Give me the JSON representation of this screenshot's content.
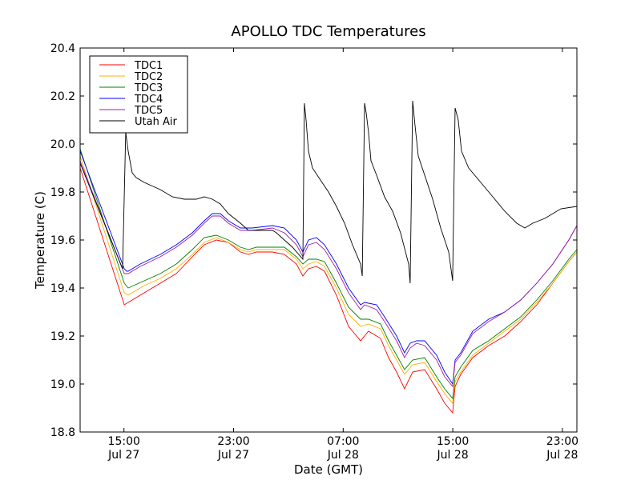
{
  "chart_data": {
    "type": "line",
    "title": "APOLLO TDC Temperatures",
    "xlabel": "Date (GMT)",
    "ylabel": "Temperature (C)",
    "x_units": "hours since Jul 27 00:00 GMT",
    "xlim": [
      11.8,
      48.06
    ],
    "ylim": [
      18.8,
      20.4
    ],
    "grid": false,
    "legend_position": "top-left",
    "yticks": [
      18.8,
      19.0,
      19.2,
      19.4,
      19.6,
      19.8,
      20.0,
      20.2,
      20.4
    ],
    "ytick_labels": [
      "18.8",
      "19.0",
      "19.2",
      "19.4",
      "19.6",
      "19.8",
      "20.0",
      "20.2",
      "20.4"
    ],
    "xticks": [
      {
        "value": 15,
        "time": "15:00",
        "date": "Jul 27"
      },
      {
        "value": 23,
        "time": "23:00",
        "date": "Jul 27"
      },
      {
        "value": 31,
        "time": "07:00",
        "date": "Jul 28"
      },
      {
        "value": 39,
        "time": "15:00",
        "date": "Jul 28"
      },
      {
        "value": 47,
        "time": "23:00",
        "date": "Jul 28"
      }
    ],
    "series": [
      {
        "name": "TDC1",
        "color": "#ff0000",
        "points": [
          [
            11.8,
            19.9
          ],
          [
            15.02,
            19.33
          ],
          [
            15.31,
            19.34
          ],
          [
            16.48,
            19.38
          ],
          [
            17.65,
            19.42
          ],
          [
            18.82,
            19.46
          ],
          [
            19.99,
            19.53
          ],
          [
            20.86,
            19.58
          ],
          [
            21.74,
            19.6
          ],
          [
            22.62,
            19.59
          ],
          [
            23.5,
            19.55
          ],
          [
            24.08,
            19.54
          ],
          [
            24.67,
            19.55
          ],
          [
            25.84,
            19.55
          ],
          [
            26.71,
            19.54
          ],
          [
            27.59,
            19.5
          ],
          [
            28.06,
            19.45
          ],
          [
            28.47,
            19.48
          ],
          [
            29.05,
            19.49
          ],
          [
            29.64,
            19.47
          ],
          [
            30.51,
            19.37
          ],
          [
            31.39,
            19.24
          ],
          [
            32.27,
            19.18
          ],
          [
            32.85,
            19.22
          ],
          [
            33.73,
            19.19
          ],
          [
            34.31,
            19.11
          ],
          [
            34.9,
            19.05
          ],
          [
            35.48,
            18.98
          ],
          [
            36.07,
            19.05
          ],
          [
            36.95,
            19.06
          ],
          [
            37.82,
            18.98
          ],
          [
            38.41,
            18.92
          ],
          [
            38.99,
            18.88
          ],
          [
            39.17,
            18.99
          ],
          [
            39.58,
            19.04
          ],
          [
            40.46,
            19.11
          ],
          [
            41.62,
            19.16
          ],
          [
            42.79,
            19.2
          ],
          [
            43.96,
            19.26
          ],
          [
            45.13,
            19.33
          ],
          [
            46.3,
            19.42
          ],
          [
            47.47,
            19.51
          ],
          [
            48.06,
            19.55
          ]
        ]
      },
      {
        "name": "TDC2",
        "color": "#ffb000",
        "points": [
          [
            11.8,
            19.95
          ],
          [
            15.02,
            19.38
          ],
          [
            15.31,
            19.37
          ],
          [
            16.48,
            19.41
          ],
          [
            17.65,
            19.44
          ],
          [
            18.82,
            19.48
          ],
          [
            19.99,
            19.54
          ],
          [
            20.86,
            19.59
          ],
          [
            21.74,
            19.61
          ],
          [
            22.62,
            19.59
          ],
          [
            23.5,
            19.56
          ],
          [
            24.08,
            19.55
          ],
          [
            24.67,
            19.56
          ],
          [
            25.84,
            19.56
          ],
          [
            26.71,
            19.56
          ],
          [
            27.59,
            19.52
          ],
          [
            28.06,
            19.48
          ],
          [
            28.47,
            19.5
          ],
          [
            29.05,
            19.51
          ],
          [
            29.64,
            19.49
          ],
          [
            30.51,
            19.4
          ],
          [
            31.39,
            19.29
          ],
          [
            32.27,
            19.24
          ],
          [
            32.85,
            19.25
          ],
          [
            33.73,
            19.23
          ],
          [
            34.31,
            19.16
          ],
          [
            34.9,
            19.1
          ],
          [
            35.48,
            19.04
          ],
          [
            36.07,
            19.08
          ],
          [
            36.95,
            19.09
          ],
          [
            37.82,
            19.01
          ],
          [
            38.41,
            18.96
          ],
          [
            38.99,
            18.92
          ],
          [
            39.17,
            19.01
          ],
          [
            39.58,
            19.05
          ],
          [
            40.46,
            19.12
          ],
          [
            41.62,
            19.17
          ],
          [
            42.79,
            19.22
          ],
          [
            43.96,
            19.27
          ],
          [
            45.13,
            19.34
          ],
          [
            46.3,
            19.42
          ],
          [
            47.47,
            19.51
          ],
          [
            48.06,
            19.55
          ]
        ]
      },
      {
        "name": "TDC3",
        "color": "#008000",
        "points": [
          [
            11.8,
            19.98
          ],
          [
            15.02,
            19.42
          ],
          [
            15.31,
            19.4
          ],
          [
            16.48,
            19.43
          ],
          [
            17.65,
            19.46
          ],
          [
            18.82,
            19.5
          ],
          [
            19.99,
            19.56
          ],
          [
            20.86,
            19.61
          ],
          [
            21.74,
            19.62
          ],
          [
            22.62,
            19.6
          ],
          [
            23.5,
            19.57
          ],
          [
            24.08,
            19.56
          ],
          [
            24.67,
            19.57
          ],
          [
            25.84,
            19.57
          ],
          [
            26.71,
            19.57
          ],
          [
            27.59,
            19.53
          ],
          [
            28.06,
            19.5
          ],
          [
            28.47,
            19.52
          ],
          [
            29.05,
            19.52
          ],
          [
            29.64,
            19.51
          ],
          [
            30.51,
            19.42
          ],
          [
            31.39,
            19.32
          ],
          [
            32.27,
            19.27
          ],
          [
            32.85,
            19.27
          ],
          [
            33.73,
            19.25
          ],
          [
            34.31,
            19.18
          ],
          [
            34.9,
            19.12
          ],
          [
            35.48,
            19.06
          ],
          [
            36.07,
            19.1
          ],
          [
            36.95,
            19.11
          ],
          [
            37.82,
            19.03
          ],
          [
            38.41,
            18.98
          ],
          [
            38.99,
            18.94
          ],
          [
            39.17,
            19.03
          ],
          [
            39.58,
            19.07
          ],
          [
            40.46,
            19.14
          ],
          [
            41.62,
            19.18
          ],
          [
            42.79,
            19.23
          ],
          [
            43.96,
            19.28
          ],
          [
            45.13,
            19.35
          ],
          [
            46.3,
            19.43
          ],
          [
            47.47,
            19.52
          ],
          [
            48.06,
            19.56
          ]
        ]
      },
      {
        "name": "TDC4",
        "color": "#0000ff",
        "points": [
          [
            11.8,
            19.97
          ],
          [
            15.02,
            19.48
          ],
          [
            15.19,
            19.47
          ],
          [
            15.31,
            19.47
          ],
          [
            16.19,
            19.5
          ],
          [
            17.65,
            19.54
          ],
          [
            18.82,
            19.58
          ],
          [
            19.99,
            19.63
          ],
          [
            20.86,
            19.68
          ],
          [
            21.45,
            19.71
          ],
          [
            22.03,
            19.71
          ],
          [
            22.62,
            19.68
          ],
          [
            23.5,
            19.65
          ],
          [
            24.37,
            19.65
          ],
          [
            25.84,
            19.66
          ],
          [
            26.71,
            19.65
          ],
          [
            27.59,
            19.6
          ],
          [
            28.06,
            19.55
          ],
          [
            28.47,
            19.6
          ],
          [
            29.05,
            19.61
          ],
          [
            29.64,
            19.58
          ],
          [
            30.51,
            19.5
          ],
          [
            31.39,
            19.4
          ],
          [
            32.27,
            19.33
          ],
          [
            32.56,
            19.34
          ],
          [
            33.44,
            19.33
          ],
          [
            34.02,
            19.28
          ],
          [
            34.9,
            19.2
          ],
          [
            35.48,
            19.13
          ],
          [
            35.89,
            19.17
          ],
          [
            36.36,
            19.18
          ],
          [
            36.95,
            19.18
          ],
          [
            37.82,
            19.12
          ],
          [
            38.41,
            19.05
          ],
          [
            38.99,
            19.0
          ],
          [
            39.17,
            19.1
          ],
          [
            39.58,
            19.13
          ],
          [
            40.46,
            19.22
          ],
          [
            41.62,
            19.27
          ],
          [
            42.79,
            19.3
          ],
          [
            43.96,
            19.35
          ],
          [
            45.13,
            19.42
          ],
          [
            46.3,
            19.5
          ],
          [
            47.47,
            19.6
          ],
          [
            48.06,
            19.66
          ]
        ]
      },
      {
        "name": "TDC5",
        "color": "#a020a0",
        "points": [
          [
            11.8,
            19.93
          ],
          [
            15.02,
            19.46
          ],
          [
            15.19,
            19.46
          ],
          [
            15.31,
            19.46
          ],
          [
            16.19,
            19.49
          ],
          [
            17.65,
            19.53
          ],
          [
            18.82,
            19.57
          ],
          [
            19.99,
            19.62
          ],
          [
            20.86,
            19.67
          ],
          [
            21.45,
            19.7
          ],
          [
            22.03,
            19.7
          ],
          [
            22.62,
            19.67
          ],
          [
            23.5,
            19.64
          ],
          [
            24.37,
            19.64
          ],
          [
            25.84,
            19.65
          ],
          [
            26.71,
            19.63
          ],
          [
            27.59,
            19.58
          ],
          [
            28.06,
            19.53
          ],
          [
            28.47,
            19.58
          ],
          [
            29.05,
            19.59
          ],
          [
            29.64,
            19.56
          ],
          [
            30.51,
            19.48
          ],
          [
            31.39,
            19.38
          ],
          [
            32.27,
            19.31
          ],
          [
            32.56,
            19.33
          ],
          [
            33.44,
            19.31
          ],
          [
            34.02,
            19.26
          ],
          [
            34.9,
            19.18
          ],
          [
            35.48,
            19.11
          ],
          [
            35.89,
            19.15
          ],
          [
            36.36,
            19.17
          ],
          [
            36.95,
            19.16
          ],
          [
            37.82,
            19.1
          ],
          [
            38.41,
            19.03
          ],
          [
            38.99,
            18.99
          ],
          [
            39.17,
            19.09
          ],
          [
            39.58,
            19.12
          ],
          [
            40.46,
            19.21
          ],
          [
            41.62,
            19.26
          ],
          [
            42.79,
            19.3
          ],
          [
            43.96,
            19.35
          ],
          [
            45.13,
            19.42
          ],
          [
            46.3,
            19.5
          ],
          [
            47.47,
            19.6
          ],
          [
            48.06,
            19.66
          ]
        ]
      },
      {
        "name": "Utah Air",
        "color": "#000000",
        "points": [
          [
            11.8,
            19.92
          ],
          [
            14.9,
            19.48
          ],
          [
            15.13,
            20.05
          ],
          [
            15.31,
            19.97
          ],
          [
            15.6,
            19.88
          ],
          [
            15.89,
            19.86
          ],
          [
            16.48,
            19.84
          ],
          [
            17.65,
            19.81
          ],
          [
            18.53,
            19.78
          ],
          [
            19.4,
            19.77
          ],
          [
            20.28,
            19.77
          ],
          [
            20.86,
            19.78
          ],
          [
            21.45,
            19.77
          ],
          [
            22.03,
            19.75
          ],
          [
            22.62,
            19.71
          ],
          [
            23.5,
            19.67
          ],
          [
            24.08,
            19.64
          ],
          [
            24.67,
            19.64
          ],
          [
            25.84,
            19.64
          ],
          [
            26.13,
            19.63
          ],
          [
            26.71,
            19.6
          ],
          [
            27.3,
            19.57
          ],
          [
            28.06,
            19.52
          ],
          [
            28.17,
            20.17
          ],
          [
            28.29,
            20.1
          ],
          [
            28.47,
            19.97
          ],
          [
            28.76,
            19.9
          ],
          [
            29.34,
            19.85
          ],
          [
            29.93,
            19.8
          ],
          [
            30.51,
            19.74
          ],
          [
            31.1,
            19.67
          ],
          [
            31.68,
            19.58
          ],
          [
            32.27,
            19.5
          ],
          [
            32.39,
            19.45
          ],
          [
            32.56,
            20.17
          ],
          [
            32.68,
            20.13
          ],
          [
            32.85,
            20.05
          ],
          [
            33.03,
            19.93
          ],
          [
            33.44,
            19.87
          ],
          [
            34.02,
            19.78
          ],
          [
            34.61,
            19.72
          ],
          [
            35.19,
            19.63
          ],
          [
            35.78,
            19.5
          ],
          [
            35.89,
            19.42
          ],
          [
            36.07,
            20.18
          ],
          [
            36.24,
            20.08
          ],
          [
            36.48,
            19.95
          ],
          [
            36.95,
            19.87
          ],
          [
            37.53,
            19.77
          ],
          [
            38.12,
            19.65
          ],
          [
            38.7,
            19.55
          ],
          [
            38.99,
            19.43
          ],
          [
            39.17,
            20.15
          ],
          [
            39.4,
            20.1
          ],
          [
            39.64,
            19.97
          ],
          [
            40.16,
            19.9
          ],
          [
            41.04,
            19.84
          ],
          [
            41.92,
            19.78
          ],
          [
            42.79,
            19.72
          ],
          [
            43.67,
            19.67
          ],
          [
            44.26,
            19.65
          ],
          [
            44.84,
            19.67
          ],
          [
            45.72,
            19.69
          ],
          [
            46.89,
            19.73
          ],
          [
            48.06,
            19.74
          ]
        ]
      }
    ]
  }
}
